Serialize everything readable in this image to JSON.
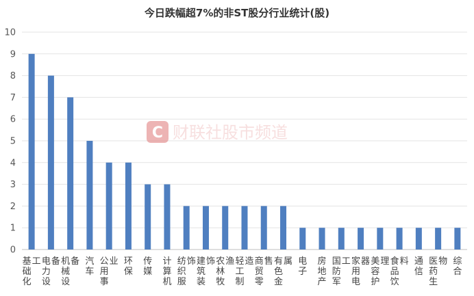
{
  "chart_data": {
    "type": "bar",
    "title": "今日跌幅超7%的非ST股分行业统计(股)",
    "categories": [
      "基础化工",
      "电力设备",
      "机械设备",
      "汽车",
      "公用事业",
      "环保",
      "传媒",
      "计算机",
      "纺织服饰",
      "建筑装饰",
      "农林牧渔",
      "轻工制造",
      "商贸零售",
      "有色金属",
      "电子",
      "房地产",
      "国防军工",
      "家用电器",
      "美容护理",
      "食品饮料",
      "通信",
      "医药生物",
      "综合"
    ],
    "values": [
      9,
      8,
      7,
      5,
      4,
      4,
      3,
      3,
      2,
      2,
      2,
      2,
      2,
      2,
      1,
      1,
      1,
      1,
      1,
      1,
      1,
      1,
      1
    ],
    "ylim": [
      0,
      10
    ],
    "yticks": [
      0,
      1,
      2,
      3,
      4,
      5,
      6,
      7,
      8,
      9,
      10
    ],
    "grid": true,
    "bar_color": "#4f7fc0",
    "xlabel": "",
    "ylabel": ""
  },
  "watermark": {
    "logo_letter": "C",
    "text": "财联社股市频道",
    "color": "#e8a0a0"
  }
}
